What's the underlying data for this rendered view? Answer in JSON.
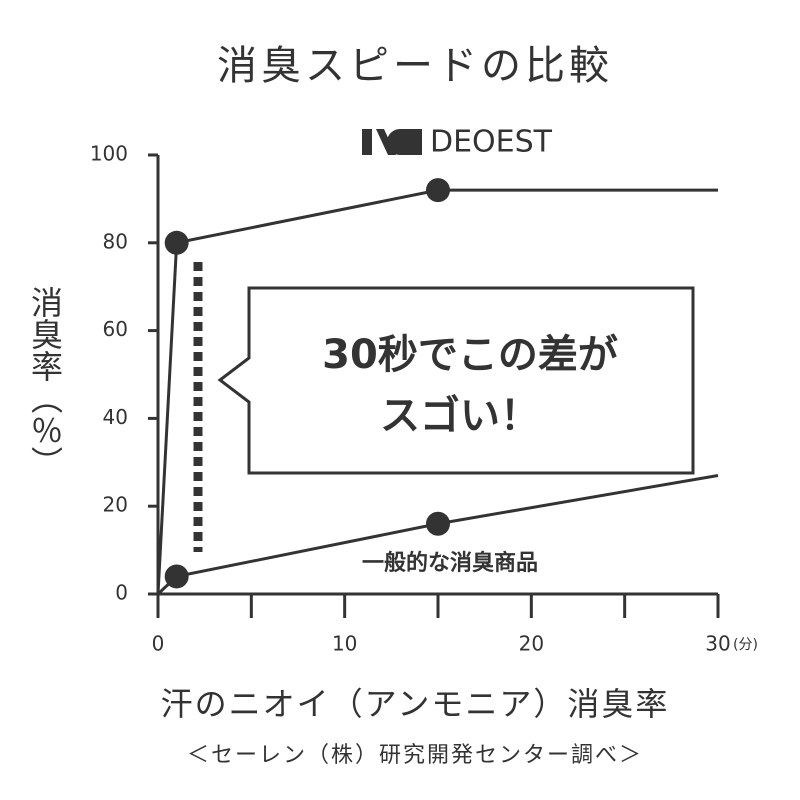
{
  "chart_data": {
    "type": "line",
    "title": "消臭スピードの比較",
    "y_label": "消臭率（％）",
    "x_unit": "(分)",
    "x_label": "汗のニオイ（アンモニア）消臭率",
    "source": "＜セーレン（株）研究開発センター調べ＞",
    "callout": [
      "30秒でこの差が",
      "スゴい！"
    ],
    "x": [
      0,
      1,
      15,
      30
    ],
    "series": [
      {
        "name": "DEOEST",
        "color": "#333333",
        "values": [
          0,
          80,
          92,
          92
        ]
      },
      {
        "name": "一般的な消臭商品",
        "color": "#333333",
        "values": [
          0,
          4,
          16,
          27
        ]
      }
    ],
    "xlim": [
      0,
      30
    ],
    "xticks": [
      0,
      10,
      20,
      30
    ],
    "xminor_ticks": [
      5,
      15,
      25
    ],
    "ylim": [
      0,
      100
    ],
    "yticks": [
      0,
      20,
      40,
      60,
      80,
      100
    ]
  }
}
